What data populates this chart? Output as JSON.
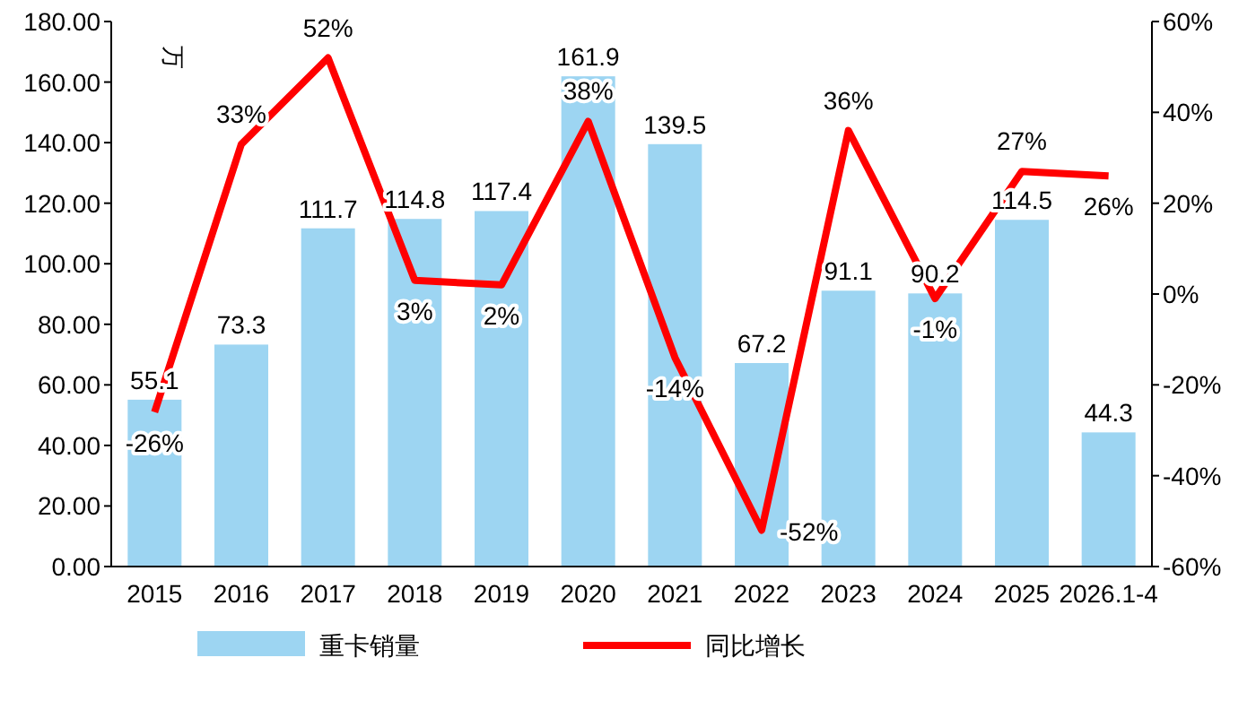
{
  "chart_data": {
    "type": "bar",
    "ylabel": "万",
    "categories": [
      "2015",
      "2016",
      "2017",
      "2018",
      "2019",
      "2020",
      "2021",
      "2022",
      "2023",
      "2024",
      "2025",
      "2026.1-4"
    ],
    "series": [
      {
        "name": "重卡销量",
        "color": "#9dd5f2",
        "values": [
          55.1,
          73.3,
          111.7,
          114.8,
          117.4,
          161.9,
          139.5,
          67.2,
          91.1,
          90.2,
          114.5,
          44.3
        ]
      },
      {
        "name": "同比增长",
        "type": "line",
        "axis": "y2",
        "color": "#ff0000",
        "values": [
          -26,
          33,
          52,
          3,
          2,
          38,
          -14,
          -52,
          36,
          -1,
          27,
          26
        ],
        "value_labels": [
          "-26%",
          "33%",
          "52%",
          "3%",
          "2%",
          "38%",
          "-14%",
          "-52%",
          "36%",
          "-1%",
          "27%",
          "26%"
        ]
      }
    ],
    "ylim": [
      0,
      180
    ],
    "yticks": [
      {
        "value": 0,
        "label": "0.00"
      },
      {
        "value": 20,
        "label": "20.00"
      },
      {
        "value": 40,
        "label": "40.00"
      },
      {
        "value": 60,
        "label": "60.00"
      },
      {
        "value": 80,
        "label": "80.00"
      },
      {
        "value": 100,
        "label": "100.00"
      },
      {
        "value": 120,
        "label": "120.00"
      },
      {
        "value": 140,
        "label": "140.00"
      },
      {
        "value": 160,
        "label": "160.00"
      },
      {
        "value": 180,
        "label": "180.00"
      }
    ],
    "y2lim": [
      -60,
      60
    ],
    "y2ticks": [
      {
        "value": -60,
        "label": "-60%"
      },
      {
        "value": -40,
        "label": "-40%"
      },
      {
        "value": -20,
        "label": "-20%"
      },
      {
        "value": 0,
        "label": "0%"
      },
      {
        "value": 20,
        "label": "20%"
      },
      {
        "value": 40,
        "label": "40%"
      },
      {
        "value": 60,
        "label": "60%"
      }
    ],
    "data_labels": true,
    "legend": "bottom",
    "marker": "none"
  }
}
